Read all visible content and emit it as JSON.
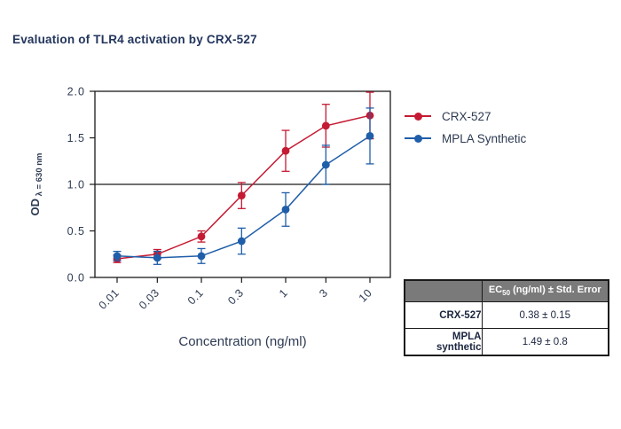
{
  "page": {
    "title": "Evaluation of TLR4 activation by CRX-527"
  },
  "colors": {
    "crx_red": "#c51a33",
    "mpla_blue": "#1f5ea9",
    "ink": "#1a1a1a",
    "axis_text": "#2d3a52",
    "title_text": "#22355c",
    "table_header_bg": "#7a7a7a",
    "table_header_text": "#ffffff"
  },
  "chart_data": {
    "type": "line",
    "x_scale": "log",
    "x": [
      0.01,
      0.03,
      0.1,
      0.3,
      1,
      3,
      10
    ],
    "x_tick_labels": [
      "0.01",
      "0.03",
      "0.1",
      "0.3",
      "1",
      "3",
      "10"
    ],
    "xlabel": "Concentration (ng/ml)",
    "ylabel_main": "OD",
    "ylabel_sub": "λ = 630 nm",
    "ylim": [
      0,
      2
    ],
    "y_ticks": [
      0,
      0.5,
      1,
      1.5,
      2
    ],
    "y_tick_labels": [
      "0.0",
      "0.5",
      "1.0",
      "1.5",
      "2.0"
    ],
    "reference_line_y": 1.0,
    "grid": false,
    "legend_position": "right-outside",
    "series": [
      {
        "name": "CRX-527",
        "color": "#c51a33",
        "values": [
          0.2,
          0.25,
          0.44,
          0.88,
          1.36,
          1.63,
          1.74
        ],
        "errors": [
          0.04,
          0.05,
          0.06,
          0.14,
          0.22,
          0.23,
          0.25
        ]
      },
      {
        "name": "MPLA Synthetic",
        "color": "#1f5ea9",
        "values": [
          0.23,
          0.21,
          0.23,
          0.39,
          0.73,
          1.21,
          1.52
        ],
        "errors": [
          0.05,
          0.07,
          0.08,
          0.14,
          0.18,
          0.21,
          0.3
        ]
      }
    ]
  },
  "legend": {
    "items": [
      {
        "label": "CRX-527",
        "color": "#c51a33"
      },
      {
        "label": "MPLA Synthetic",
        "color": "#1f5ea9"
      }
    ]
  },
  "table": {
    "header": {
      "prefix": "EC",
      "sub": "50",
      "suffix": " (ng/ml) ± Std. Error"
    },
    "rows": [
      {
        "label": "CRX-527",
        "value": "0.38 ± 0.15"
      },
      {
        "label": "MPLA synthetic",
        "value": "1.49 ± 0.8"
      }
    ]
  }
}
